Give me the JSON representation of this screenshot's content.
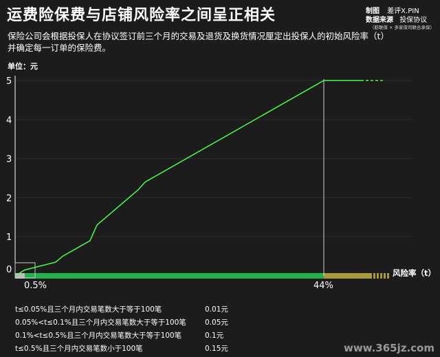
{
  "header": {
    "title": "运费险保费与店铺风险率之间呈正相关",
    "subtitle": "保险公司会根据投保人在协议签订前三个月的交易及退货及换货情况厘定出投保人的初始风险率（t）并确定每一订单的保险费。",
    "credits": {
      "made_by_label": "制图",
      "made_by_value": "差评X.PIN",
      "source_label": "数据来源",
      "source_value": "投保协议",
      "source_note": "（舫联保 × 多家保司联合承保）"
    }
  },
  "chart_data": {
    "type": "line",
    "unit_label": "单位：元",
    "xlabel": "风险率（t）",
    "ylabel": "",
    "ylim": [
      0,
      5
    ],
    "yticks": [
      "0",
      "1",
      "2",
      "3",
      "4",
      "5"
    ],
    "x_markers": [
      {
        "x": 0.5,
        "label": "0.5%"
      },
      {
        "x": 44,
        "label": "44%"
      }
    ],
    "grid": true,
    "series": [
      {
        "x": [
          0,
          0.5,
          5,
          6,
          10,
          11,
          17,
          18,
          44,
          50
        ],
        "y": [
          0,
          0.15,
          0.35,
          0.5,
          0.9,
          1.3,
          2.2,
          2.4,
          5,
          5
        ]
      }
    ],
    "dashed_after_x": 50,
    "colors": {
      "line": "#4cff4c",
      "axis_bar": "#22b14c",
      "end_bar": "#a89a3a",
      "start_bar": "#bbbbbb"
    }
  },
  "tiers": [
    {
      "condition": "t≤0.05%且三个月内交易笔数大于等于100笔",
      "fee": "0.01元"
    },
    {
      "condition": "0.05%<t≤0.1%且三个月内交易笔数大于等于100笔",
      "fee": "0.05元"
    },
    {
      "condition": "0.1%<t≤0.5%且三个月内交易笔数大于等于100笔",
      "fee": "0.1元"
    },
    {
      "condition": "t≤0.5%且三个月内交易笔数小于100笔",
      "fee": "0.15元"
    }
  ],
  "watermark": "www.365jz.com"
}
